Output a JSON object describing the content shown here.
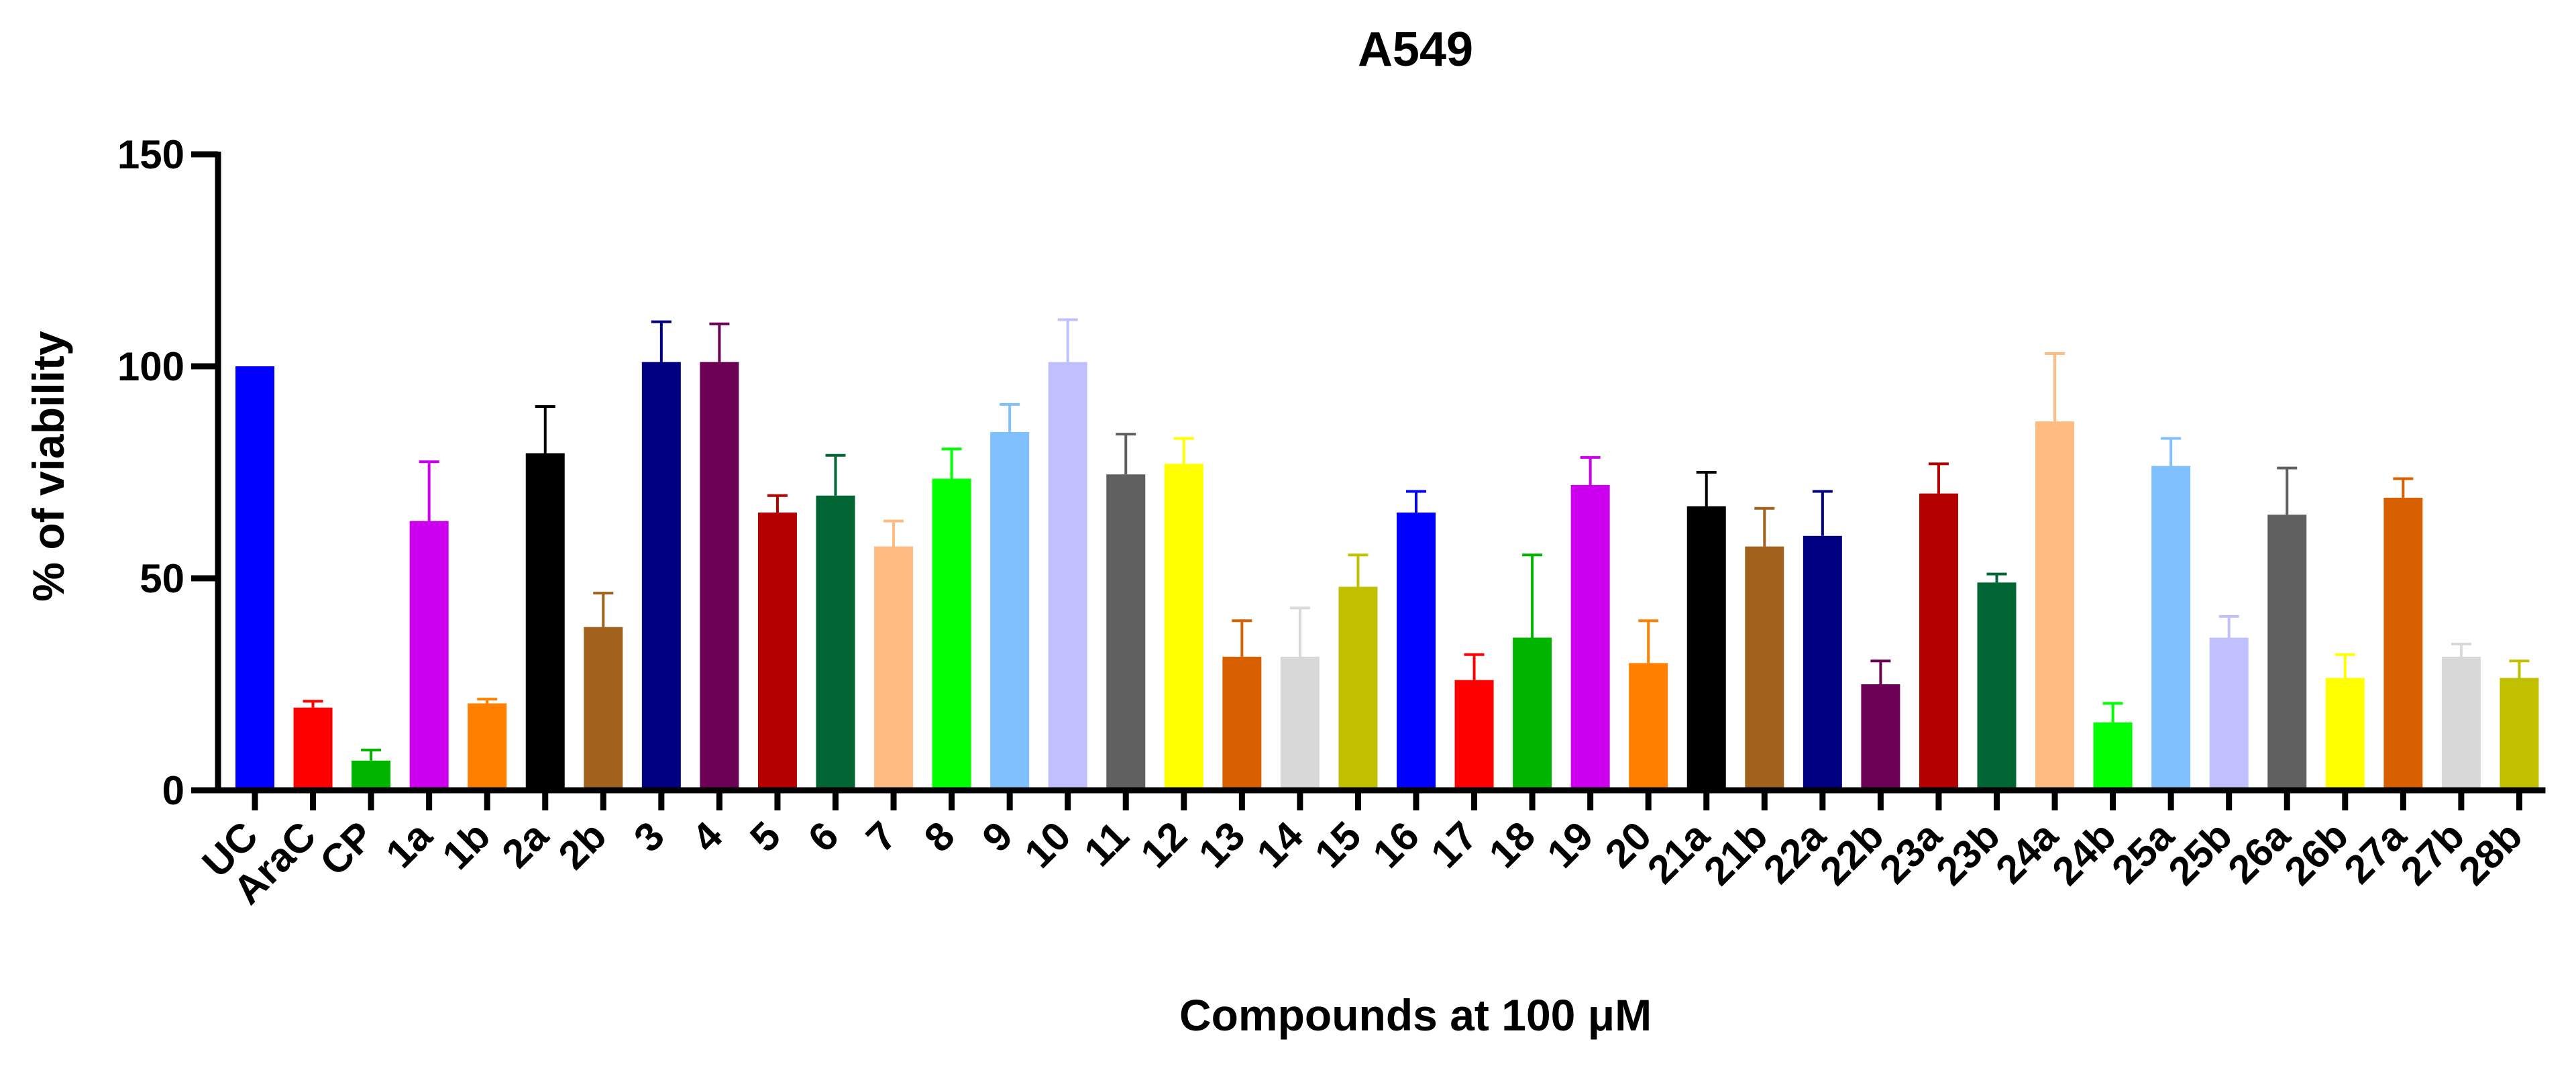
{
  "chart_data": {
    "type": "bar",
    "title": "A549",
    "xlabel": "Compounds at 100 μM",
    "ylabel": "% of viability",
    "ylim": [
      0,
      150
    ],
    "yticks": [
      0,
      50,
      100,
      150
    ],
    "grid": false,
    "error_bars": "upper",
    "categories": [
      "UC",
      "AraC",
      "CP",
      "1a",
      "1b",
      "2a",
      "2b",
      "3",
      "4",
      "5",
      "6",
      "7",
      "8",
      "9",
      "10",
      "11",
      "12",
      "13",
      "14",
      "15",
      "16",
      "17",
      "18",
      "19",
      "20",
      "21a",
      "21b",
      "22a",
      "22b",
      "23a",
      "23b",
      "24a",
      "24b",
      "25a",
      "25b",
      "26a",
      "26b",
      "27a",
      "27b",
      "28b"
    ],
    "values": [
      100,
      19.5,
      7,
      63.5,
      20.5,
      79.5,
      38.5,
      101,
      101,
      65.5,
      69.5,
      57.5,
      73.5,
      84.5,
      101,
      74.5,
      77,
      31.5,
      31.5,
      48,
      65.5,
      26,
      36,
      72,
      30,
      67,
      57.5,
      60,
      25,
      70,
      49,
      87,
      16,
      76.5,
      36,
      65,
      26.5,
      69,
      31.5,
      26.5
    ],
    "errors": [
      0,
      1.5,
      2.5,
      14,
      1,
      11,
      8,
      9.5,
      9,
      4,
      9.5,
      6,
      7,
      6.5,
      10,
      9.5,
      6,
      8.5,
      11.5,
      7.5,
      5,
      6,
      19.5,
      6.5,
      10,
      8,
      9,
      10.5,
      5.5,
      7,
      2,
      16,
      4.5,
      6.5,
      5,
      11,
      5.5,
      4.5,
      3,
      4
    ],
    "colors": [
      "#0000ff",
      "#ff0000",
      "#00b400",
      "#cc00ee",
      "#ff8000",
      "#000000",
      "#a0621c",
      "#000080",
      "#6b0055",
      "#b50000",
      "#006633",
      "#ffbb80",
      "#00ff00",
      "#80c0ff",
      "#c0c0ff",
      "#606060",
      "#ffff00",
      "#d96000",
      "#d8d8d8",
      "#c0c000",
      "#0000ff",
      "#ff0000",
      "#00b400",
      "#cc00ee",
      "#ff8000",
      "#000000",
      "#a0621c",
      "#000080",
      "#6b0055",
      "#b50000",
      "#006633",
      "#ffbb80",
      "#00ff00",
      "#80c0ff",
      "#c0c0ff",
      "#606060",
      "#ffff00",
      "#d96000",
      "#d8d8d8",
      "#c0c000"
    ]
  }
}
